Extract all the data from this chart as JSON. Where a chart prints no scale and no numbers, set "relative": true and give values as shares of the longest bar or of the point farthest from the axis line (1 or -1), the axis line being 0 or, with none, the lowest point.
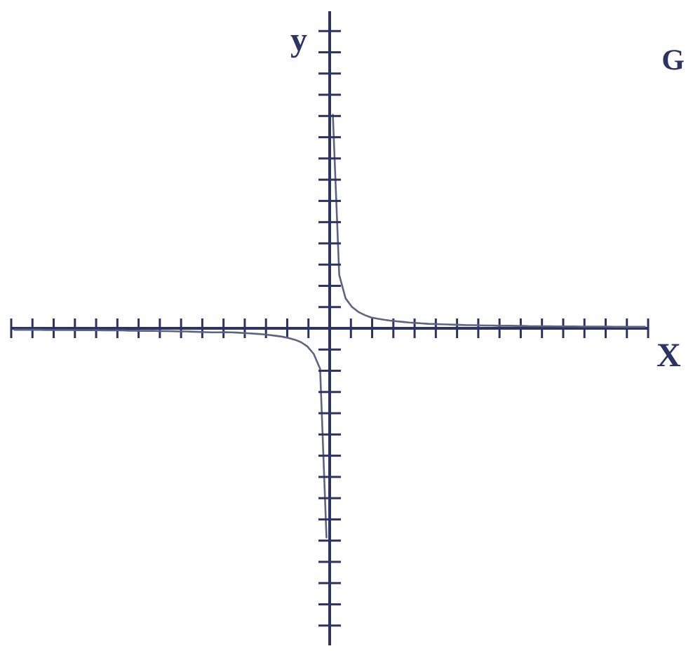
{
  "chart_data": {
    "type": "line",
    "relative": true,
    "xlabel": "X",
    "ylabel": "y",
    "annotations": [
      "G"
    ],
    "categories": [
      null,
      null,
      null,
      null,
      null,
      null,
      null,
      null,
      null,
      null,
      null,
      null,
      null,
      null,
      null,
      null,
      null,
      null,
      null,
      null,
      null,
      null,
      null,
      null,
      null,
      null,
      null,
      null,
      null,
      null,
      null,
      null,
      null,
      null,
      null,
      null,
      null,
      null,
      null,
      null,
      null,
      null,
      null,
      null,
      null,
      null,
      null,
      null,
      null,
      null,
      null,
      null,
      null,
      null,
      null,
      null,
      null,
      null,
      null,
      null,
      null,
      null,
      null,
      null,
      null,
      null,
      null,
      null,
      null,
      null,
      null,
      null,
      null,
      null,
      null,
      null,
      null,
      null,
      null,
      null,
      null,
      null,
      null,
      null,
      null,
      null,
      null,
      null,
      null,
      null,
      null,
      null,
      null,
      null,
      null,
      null,
      null,
      null,
      null,
      null
    ],
    "legend": false,
    "marker": "none",
    "line_style": "solid",
    "series": [
      {
        "color": "#5d6482",
        "values": [
          -0.007,
          -0.007,
          -0.007,
          -0.007,
          -0.007,
          -0.008,
          -0.008,
          -0.008,
          -0.008,
          -0.008,
          -0.009,
          -0.009,
          -0.009,
          -0.009,
          -0.01,
          -0.01,
          -0.01,
          -0.01,
          -0.011,
          -0.011,
          -0.012,
          -0.012,
          -0.012,
          -0.013,
          -0.013,
          -0.014,
          -0.015,
          -0.015,
          -0.016,
          -0.017,
          -0.018,
          -0.019,
          -0.019,
          -0.018,
          -0.019,
          -0.02,
          -0.022,
          -0.024,
          -0.026,
          -0.028,
          -0.031,
          -0.035,
          -0.039,
          -0.045,
          -0.053,
          -0.065,
          -0.085,
          -0.12,
          -0.19,
          -0.98,
          null,
          null,
          null,
          null,
          null,
          null,
          null,
          null,
          null,
          null,
          null,
          null,
          null,
          null,
          null,
          null,
          null,
          null,
          null,
          null,
          null,
          null,
          null,
          null,
          null,
          null,
          null,
          null,
          null,
          null,
          null,
          null,
          null,
          null,
          null,
          null,
          null,
          null,
          null,
          null,
          null,
          null,
          null,
          null,
          null,
          null,
          null,
          null,
          null,
          null
        ]
      },
      {
        "color": "#5d6482",
        "values": [
          null,
          null,
          null,
          null,
          null,
          null,
          null,
          null,
          null,
          null,
          null,
          null,
          null,
          null,
          null,
          null,
          null,
          null,
          null,
          null,
          null,
          null,
          null,
          null,
          null,
          null,
          null,
          null,
          null,
          null,
          null,
          null,
          null,
          null,
          null,
          null,
          null,
          null,
          null,
          null,
          null,
          null,
          null,
          null,
          null,
          null,
          null,
          null,
          null,
          null,
          1,
          0.25,
          0.14,
          0.1,
          0.077,
          0.062,
          0.051,
          0.045,
          0.04,
          0.036,
          0.033,
          0.03,
          0.027,
          0.025,
          0.023,
          0.021,
          0.02,
          0.019,
          0.018,
          0.017,
          0.016,
          0.015,
          0.015,
          0.014,
          0.013,
          0.013,
          0.012,
          0.012,
          0.012,
          0.011,
          0.011,
          0.01,
          0.01,
          0.01,
          0.01,
          0.009,
          0.009,
          0.009,
          0.009,
          0.008,
          0.008,
          0.008,
          0.008,
          0.008,
          0.007,
          0.007,
          0.007,
          0.007,
          0.007,
          0.007
        ]
      }
    ]
  }
}
